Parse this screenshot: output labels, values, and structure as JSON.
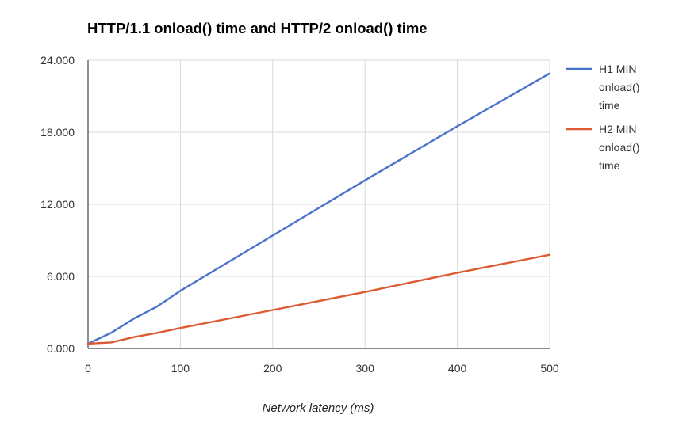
{
  "chart_data": {
    "type": "line",
    "title": "HTTP/1.1 onload() time and HTTP/2 onload() time",
    "xlabel": "Network latency (ms)",
    "ylabel": "",
    "xlim": [
      0,
      500
    ],
    "ylim": [
      0,
      24
    ],
    "x_ticks": [
      "0",
      "100",
      "200",
      "300",
      "400",
      "500"
    ],
    "y_ticks": [
      "0.000",
      "6.000",
      "12.000",
      "18.000",
      "24.000"
    ],
    "grid": true,
    "legend_position": "right",
    "series": [
      {
        "name": "H1 MIN onload() time",
        "legend_lines": [
          "H1 MIN",
          "onload()",
          "time"
        ],
        "color": "#4a74cc",
        "x": [
          0,
          25,
          50,
          75,
          100,
          200,
          300,
          400,
          500
        ],
        "values": [
          0.4,
          1.3,
          2.5,
          3.5,
          4.8,
          9.4,
          14.0,
          18.5,
          22.9
        ]
      },
      {
        "name": "H2 MIN onload() time",
        "legend_lines": [
          "H2 MIN",
          "onload()",
          "time"
        ],
        "color": "#dc5b33",
        "x": [
          0,
          25,
          50,
          75,
          100,
          200,
          300,
          400,
          500
        ],
        "values": [
          0.4,
          0.5,
          0.95,
          1.3,
          1.7,
          3.2,
          4.7,
          6.3,
          7.8
        ]
      }
    ]
  }
}
